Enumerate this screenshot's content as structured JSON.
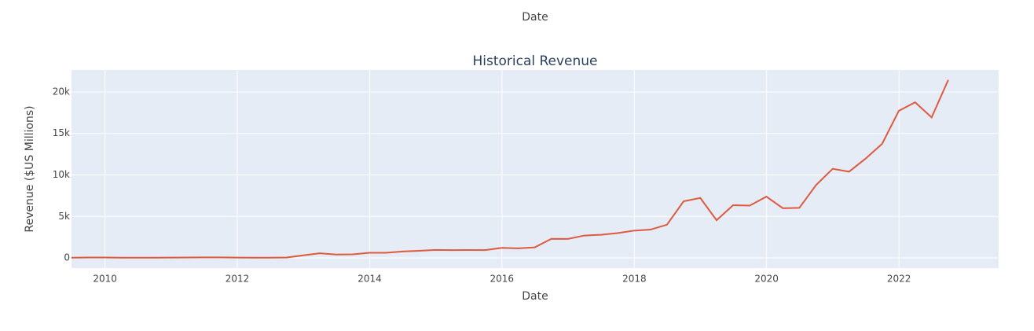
{
  "chart_data": {
    "type": "line",
    "title": "Historical Revenue",
    "top_axis_title": "Date",
    "x_label": "Date",
    "y_label": "Revenue ($US Millions)",
    "x": [
      "2009-06-30",
      "2009-09-30",
      "2009-12-31",
      "2010-03-31",
      "2010-06-30",
      "2010-09-30",
      "2010-12-31",
      "2011-03-31",
      "2011-06-30",
      "2011-09-30",
      "2011-12-31",
      "2012-03-31",
      "2012-06-30",
      "2012-09-30",
      "2012-12-31",
      "2013-03-31",
      "2013-06-30",
      "2013-09-30",
      "2013-12-31",
      "2014-03-31",
      "2014-06-30",
      "2014-09-30",
      "2014-12-31",
      "2015-03-31",
      "2015-06-30",
      "2015-09-30",
      "2015-12-31",
      "2016-03-31",
      "2016-06-30",
      "2016-09-30",
      "2016-12-31",
      "2017-03-31",
      "2017-06-30",
      "2017-09-30",
      "2017-12-31",
      "2018-03-31",
      "2018-06-30",
      "2018-09-30",
      "2018-12-31",
      "2019-03-31",
      "2019-06-30",
      "2019-09-30",
      "2019-12-31",
      "2020-03-31",
      "2020-06-30",
      "2020-09-30",
      "2020-12-31",
      "2021-03-31",
      "2021-06-30",
      "2021-09-30",
      "2021-12-31",
      "2022-03-31",
      "2022-06-30",
      "2022-09-30"
    ],
    "series": [
      {
        "name": "Revenue",
        "color": "#de5a3e",
        "values": [
          27,
          46,
          46,
          21,
          28,
          31,
          36,
          49,
          58,
          58,
          39,
          30,
          27,
          50,
          306,
          562,
          405,
          431,
          615,
          621,
          769,
          852,
          957,
          940,
          955,
          937,
          1214,
          1147,
          1270,
          2298,
          2285,
          2696,
          2790,
          2985,
          3288,
          3409,
          4002,
          6824,
          7226,
          4541,
          6350,
          6303,
          7384,
          5985,
          6036,
          8771,
          10744,
          10389,
          11958,
          13757,
          17719,
          18756,
          16934,
          21454
        ]
      }
    ],
    "xlim": [
      "2009-06-30",
      "2023-07-05"
    ],
    "xticks": [
      "2010",
      "2012",
      "2014",
      "2016",
      "2018",
      "2020",
      "2022"
    ],
    "ylim": [
      -1230,
      22650
    ],
    "yticks": [
      0,
      {
        "value": 5000,
        "label": "5k"
      },
      {
        "value": 10000,
        "label": "10k"
      },
      {
        "value": 15000,
        "label": "15k"
      },
      {
        "value": 20000,
        "label": "20k"
      }
    ],
    "grid": true
  }
}
